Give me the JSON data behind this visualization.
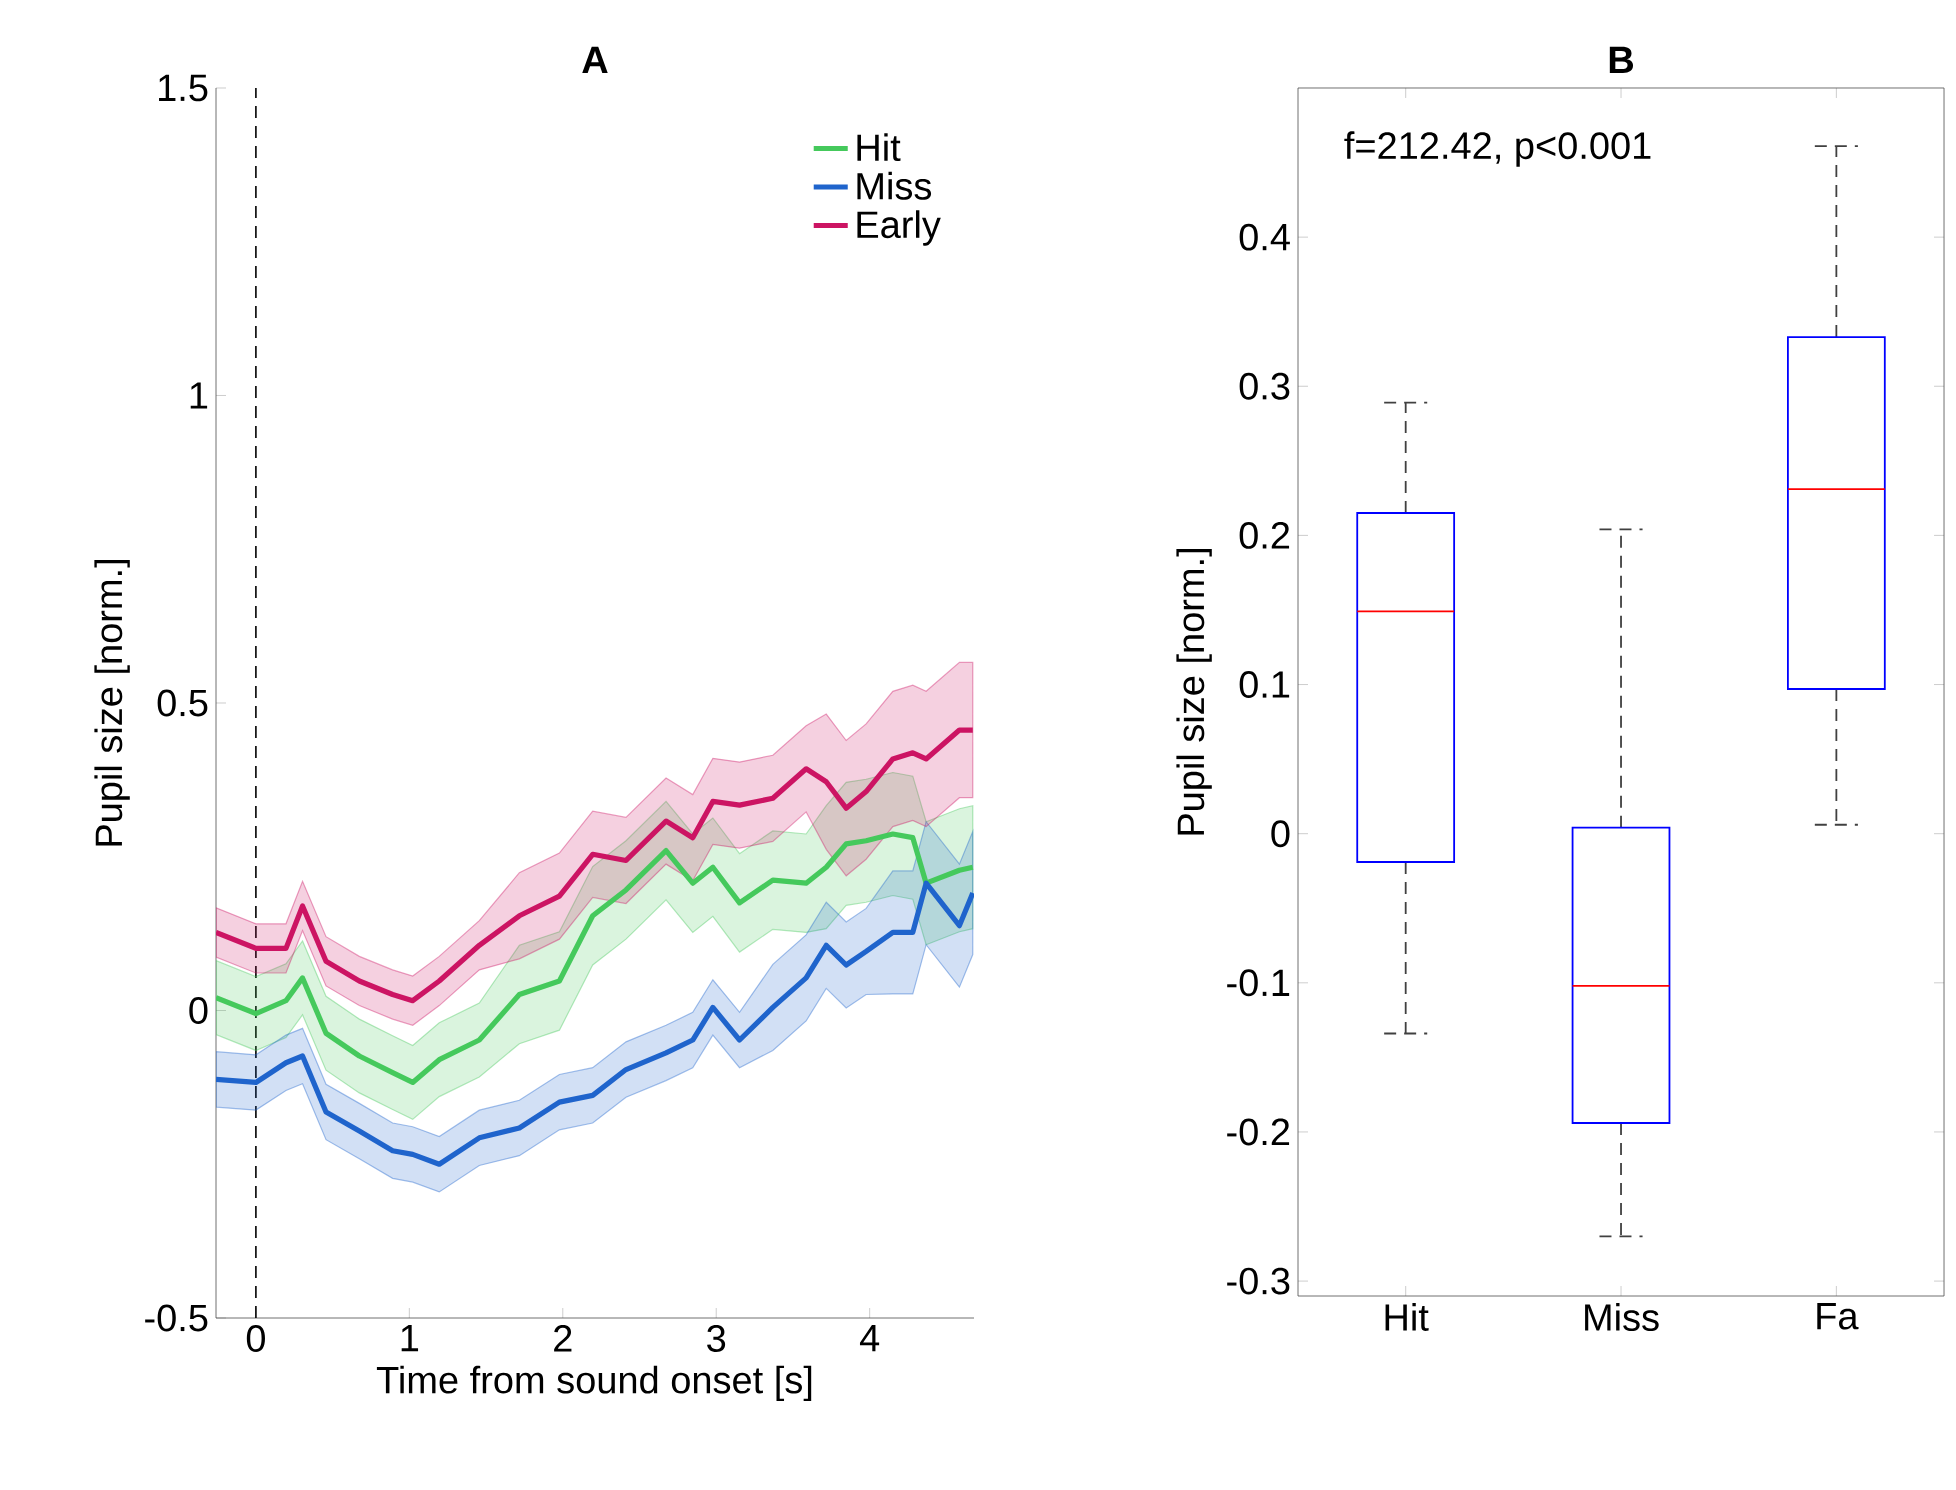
{
  "chart_data": [
    {
      "type": "line",
      "title": "A",
      "xlabel": "Time from sound onset [s]",
      "ylabel": "Pupil size [norm.]",
      "x": [
        -0.26,
        0,
        0.196,
        0.304,
        0.457,
        0.674,
        0.891,
        1.022,
        1.195,
        1.456,
        1.717,
        1.978,
        2.195,
        2.412,
        2.673,
        2.847,
        2.978,
        3.152,
        3.369,
        3.586,
        3.717,
        3.847,
        3.977,
        4.151,
        4.281,
        4.368,
        4.585,
        4.672
      ],
      "series": [
        {
          "name": "Hit",
          "color": "#45c95c",
          "values": [
            0.021,
            -0.005,
            0.016,
            0.053,
            -0.037,
            -0.074,
            -0.101,
            -0.117,
            -0.08,
            -0.048,
            0.026,
            0.048,
            0.154,
            0.196,
            0.26,
            0.207,
            0.233,
            0.175,
            0.212,
            0.207,
            0.233,
            0.271,
            0.276,
            0.287,
            0.281,
            0.207,
            0.228,
            0.233
          ],
          "lower": [
            -0.039,
            -0.065,
            -0.044,
            -0.007,
            -0.097,
            -0.134,
            -0.161,
            -0.177,
            -0.14,
            -0.108,
            -0.054,
            -0.032,
            0.074,
            0.116,
            0.18,
            0.127,
            0.153,
            0.095,
            0.132,
            0.127,
            0.133,
            0.171,
            0.176,
            0.187,
            0.181,
            0.107,
            0.128,
            0.133
          ],
          "upper": [
            0.081,
            0.055,
            0.076,
            0.113,
            0.023,
            -0.014,
            -0.041,
            -0.057,
            -0.02,
            0.012,
            0.106,
            0.128,
            0.234,
            0.276,
            0.34,
            0.287,
            0.313,
            0.255,
            0.292,
            0.287,
            0.333,
            0.371,
            0.376,
            0.387,
            0.381,
            0.307,
            0.328,
            0.333
          ]
        },
        {
          "name": "Miss",
          "color": "#1f64cc",
          "values": [
            -0.112,
            -0.117,
            -0.085,
            -0.074,
            -0.165,
            -0.196,
            -0.228,
            -0.234,
            -0.25,
            -0.207,
            -0.191,
            -0.149,
            -0.138,
            -0.096,
            -0.069,
            -0.048,
            0.005,
            -0.048,
            0.005,
            0.053,
            0.106,
            0.074,
            0.096,
            0.127,
            0.127,
            0.207,
            0.138,
            0.191
          ],
          "lower": [
            -0.157,
            -0.162,
            -0.13,
            -0.119,
            -0.21,
            -0.241,
            -0.273,
            -0.279,
            -0.295,
            -0.252,
            -0.236,
            -0.194,
            -0.183,
            -0.141,
            -0.114,
            -0.093,
            -0.04,
            -0.093,
            -0.065,
            -0.017,
            0.036,
            0.004,
            0.026,
            0.027,
            0.027,
            0.107,
            0.038,
            0.091
          ],
          "upper": [
            -0.067,
            -0.072,
            -0.04,
            -0.029,
            -0.12,
            -0.151,
            -0.183,
            -0.189,
            -0.205,
            -0.162,
            -0.146,
            -0.104,
            -0.093,
            -0.051,
            -0.024,
            -0.003,
            0.05,
            -0.003,
            0.075,
            0.123,
            0.176,
            0.144,
            0.166,
            0.227,
            0.227,
            0.307,
            0.238,
            0.291
          ]
        },
        {
          "name": "Early",
          "color": "#cc1463",
          "values": [
            0.127,
            0.101,
            0.101,
            0.17,
            0.08,
            0.048,
            0.026,
            0.016,
            0.048,
            0.106,
            0.154,
            0.186,
            0.254,
            0.244,
            0.308,
            0.281,
            0.34,
            0.334,
            0.345,
            0.393,
            0.372,
            0.329,
            0.356,
            0.409,
            0.419,
            0.409,
            0.456,
            0.456
          ],
          "lower": [
            0.087,
            0.061,
            0.061,
            0.13,
            0.04,
            0.008,
            -0.014,
            -0.024,
            0.008,
            0.066,
            0.084,
            0.116,
            0.184,
            0.174,
            0.238,
            0.211,
            0.27,
            0.264,
            0.275,
            0.323,
            0.262,
            0.219,
            0.246,
            0.299,
            0.309,
            0.299,
            0.346,
            0.346
          ],
          "upper": [
            0.167,
            0.141,
            0.141,
            0.21,
            0.12,
            0.088,
            0.066,
            0.056,
            0.088,
            0.146,
            0.224,
            0.256,
            0.324,
            0.314,
            0.378,
            0.351,
            0.41,
            0.404,
            0.415,
            0.463,
            0.482,
            0.439,
            0.466,
            0.519,
            0.529,
            0.519,
            0.566,
            0.566
          ]
        }
      ],
      "xlim": [
        -0.26,
        4.68
      ],
      "ylim": [
        -0.5,
        1.5
      ],
      "xticks": [
        0,
        1,
        2,
        3,
        4
      ],
      "yticks": [
        -0.5,
        0,
        0.5,
        1,
        1.5
      ],
      "ref_lines": [
        {
          "axis": "x",
          "value": 0,
          "line_style": "dashed",
          "color": "#000000"
        }
      ],
      "legend": "top right"
    },
    {
      "type": "box",
      "title": "B",
      "ylabel": "Pupil size [norm.]",
      "categories": [
        "Hit",
        "Miss",
        "Fa"
      ],
      "color": "#0000ff",
      "boxes": [
        {
          "low": -0.134,
          "q1": -0.019,
          "median": 0.149,
          "q3": 0.215,
          "high": 0.289
        },
        {
          "low": -0.27,
          "q1": -0.194,
          "median": -0.102,
          "q3": 0.004,
          "high": 0.204
        },
        {
          "low": 0.006,
          "q1": 0.097,
          "median": 0.231,
          "q3": 0.333,
          "high": 0.461
        }
      ],
      "ylim": [
        -0.31,
        0.5
      ],
      "yticks": [
        -0.3,
        -0.2,
        -0.1,
        0,
        0.1,
        0.2,
        0.3,
        0.4
      ],
      "annotations": [
        "f=212.42, p<0.001"
      ]
    }
  ]
}
